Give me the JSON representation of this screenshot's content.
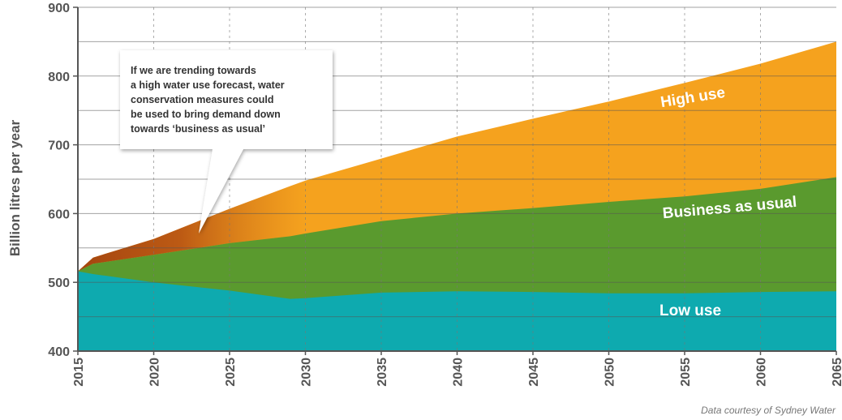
{
  "chart_data": {
    "type": "area",
    "title": "",
    "xlabel": "",
    "ylabel": "Billion litres per year",
    "ylim": [
      400,
      900
    ],
    "xlim": [
      2015,
      2065
    ],
    "yticks": [
      "400",
      "500",
      "600",
      "700",
      "800",
      "900"
    ],
    "xticks": [
      "2015",
      "2020",
      "2025",
      "2030",
      "2035",
      "2040",
      "2045",
      "2050",
      "2055",
      "2060",
      "2065"
    ],
    "grid": true,
    "x": [
      2015,
      2016,
      2020,
      2025,
      2029,
      2030,
      2035,
      2040,
      2045,
      2050,
      2055,
      2060,
      2065
    ],
    "series": [
      {
        "name": "High use",
        "color": "#f5a21e",
        "values": [
          516,
          536,
          563,
          607,
          640,
          648,
          680,
          712,
          738,
          763,
          790,
          818,
          850
        ]
      },
      {
        "name": "Business as usual",
        "color": "#5a9a2e",
        "values": [
          516,
          527,
          540,
          557,
          567,
          571,
          589,
          600,
          608,
          617,
          625,
          636,
          653
        ]
      },
      {
        "name": "Low use",
        "color": "#0eaaaf",
        "values": [
          516,
          512,
          500,
          488,
          476,
          477,
          485,
          487,
          486,
          484,
          484,
          486,
          487
        ]
      }
    ],
    "annotations": {
      "callout": [
        "If we are trending towards",
        "a high water use forecast, water",
        "conservation measures could",
        "be used to bring demand down",
        "towards ‘business as usual’"
      ],
      "source": "Data courtesy of Sydney Water"
    }
  }
}
